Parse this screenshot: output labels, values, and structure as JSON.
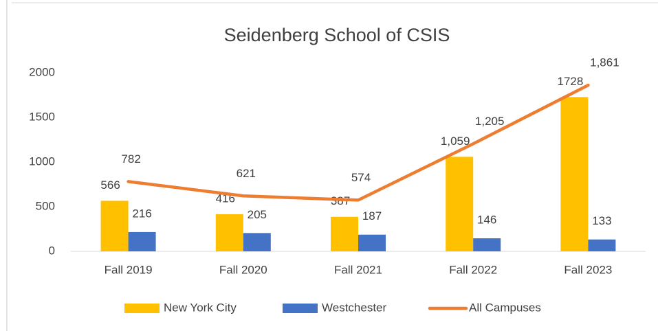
{
  "chart_data": {
    "type": "bar-line",
    "title": "Seidenberg School of CSIS",
    "categories": [
      "Fall 2019",
      "Fall 2020",
      "Fall 2021",
      "Fall 2022",
      "Fall 2023"
    ],
    "series": [
      {
        "name": "New York City",
        "type": "bar",
        "color": "#ffc000",
        "values": [
          566,
          416,
          387,
          1059,
          1728
        ],
        "value_labels": [
          "566",
          "416",
          "387",
          "1,059",
          "1728"
        ]
      },
      {
        "name": "Westchester",
        "type": "bar",
        "color": "#4472c4",
        "values": [
          216,
          205,
          187,
          146,
          133
        ]
      },
      {
        "name": "All Campuses",
        "type": "line",
        "color": "#ed7d31",
        "values": [
          782,
          621,
          574,
          1205,
          1861
        ],
        "value_labels": [
          "782",
          "621",
          "574",
          "1,205",
          "1,861"
        ]
      }
    ],
    "ylim": [
      0,
      2000
    ],
    "yticks": [
      0,
      500,
      1000,
      1500,
      2000
    ],
    "grid": false,
    "legend": "bottom"
  }
}
